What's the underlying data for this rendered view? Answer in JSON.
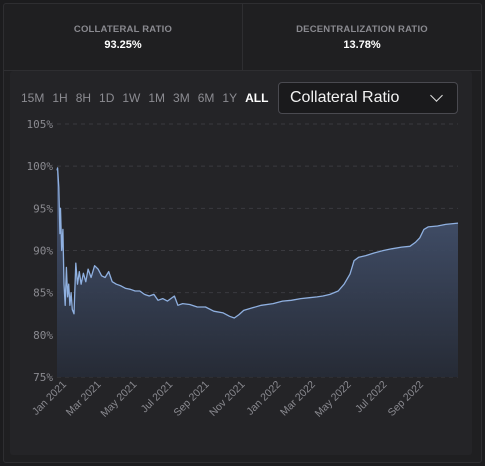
{
  "stats": [
    {
      "label": "COLLATERAL RATIO",
      "value": "93.25%"
    },
    {
      "label": "DECENTRALIZATION RATIO",
      "value": "13.78%"
    }
  ],
  "ranges": [
    "15M",
    "1H",
    "8H",
    "1D",
    "1W",
    "1M",
    "3M",
    "6M",
    "1Y",
    "ALL"
  ],
  "active_range": "ALL",
  "dropdown": {
    "label": "Collateral Ratio",
    "icon": "chevron-down-icon"
  },
  "colors": {
    "line": "#8fb0e0",
    "fill_top": "#4a5a7a",
    "fill_bottom": "#262b36",
    "grid": "#3a3a3f"
  },
  "chart_data": {
    "type": "area",
    "y_ticks": [
      "105%",
      "100%",
      "95%",
      "90%",
      "85%",
      "80%",
      "75%"
    ],
    "y_tick_values": [
      105,
      100,
      95,
      90,
      85,
      80,
      75
    ],
    "ylim": [
      75,
      105
    ],
    "x_ticks": [
      "Jan 2021",
      "Mar 2021",
      "May 2021",
      "Jul 2021",
      "Sep 2021",
      "Nov 2021",
      "Jan 2022",
      "Mar 2022",
      "May 2022",
      "Jul 2022",
      "Sep 2022"
    ],
    "x_tick_dates": [
      "2021-01-01",
      "2021-03-01",
      "2021-05-01",
      "2021-07-01",
      "2021-09-01",
      "2021-11-01",
      "2022-01-01",
      "2022-03-01",
      "2022-05-01",
      "2022-07-01",
      "2022-09-01"
    ],
    "xlim": [
      "2020-12-22",
      "2022-11-05"
    ],
    "grid": true,
    "series": [
      {
        "points": [
          [
            "2020-12-22",
            99.5
          ],
          [
            "2020-12-23",
            99.8
          ],
          [
            "2020-12-25",
            97.5
          ],
          [
            "2020-12-27",
            92
          ],
          [
            "2020-12-28",
            95
          ],
          [
            "2020-12-30",
            90
          ],
          [
            "2021-01-01",
            92.5
          ],
          [
            "2021-01-03",
            86
          ],
          [
            "2021-01-05",
            83.5
          ],
          [
            "2021-01-07",
            88
          ],
          [
            "2021-01-09",
            84.5
          ],
          [
            "2021-01-11",
            86
          ],
          [
            "2021-01-13",
            83.5
          ],
          [
            "2021-01-15",
            85
          ],
          [
            "2021-01-17",
            83
          ],
          [
            "2021-01-20",
            82.5
          ],
          [
            "2021-01-23",
            88.5
          ],
          [
            "2021-01-26",
            86
          ],
          [
            "2021-01-29",
            87.5
          ],
          [
            "2021-02-01",
            86
          ],
          [
            "2021-02-05",
            87.3
          ],
          [
            "2021-02-09",
            86.3
          ],
          [
            "2021-02-13",
            87.8
          ],
          [
            "2021-02-18",
            86.8
          ],
          [
            "2021-02-24",
            88.2
          ],
          [
            "2021-03-02",
            87.8
          ],
          [
            "2021-03-08",
            87
          ],
          [
            "2021-03-14",
            86.8
          ],
          [
            "2021-03-20",
            87.5
          ],
          [
            "2021-03-26",
            86.3
          ],
          [
            "2021-04-02",
            86
          ],
          [
            "2021-04-10",
            85.8
          ],
          [
            "2021-04-18",
            85.5
          ],
          [
            "2021-04-26",
            85.4
          ],
          [
            "2021-05-04",
            85.2
          ],
          [
            "2021-05-12",
            85.2
          ],
          [
            "2021-05-20",
            84.8
          ],
          [
            "2021-05-28",
            84.6
          ],
          [
            "2021-06-05",
            84.8
          ],
          [
            "2021-06-12",
            84.1
          ],
          [
            "2021-06-20",
            84.3
          ],
          [
            "2021-06-28",
            84
          ],
          [
            "2021-07-10",
            84.6
          ],
          [
            "2021-07-16",
            83.5
          ],
          [
            "2021-07-24",
            83.7
          ],
          [
            "2021-08-05",
            83.6
          ],
          [
            "2021-08-18",
            83.3
          ],
          [
            "2021-09-01",
            83.3
          ],
          [
            "2021-09-15",
            82.8
          ],
          [
            "2021-10-01",
            82.6
          ],
          [
            "2021-10-12",
            82.2
          ],
          [
            "2021-10-20",
            82
          ],
          [
            "2021-10-28",
            82.4
          ],
          [
            "2021-11-05",
            82.9
          ],
          [
            "2021-11-20",
            83.2
          ],
          [
            "2021-12-05",
            83.5
          ],
          [
            "2021-12-25",
            83.7
          ],
          [
            "2022-01-10",
            84
          ],
          [
            "2022-01-25",
            84.1
          ],
          [
            "2022-02-10",
            84.3
          ],
          [
            "2022-02-25",
            84.4
          ],
          [
            "2022-03-10",
            84.5
          ],
          [
            "2022-03-20",
            84.6
          ],
          [
            "2022-04-01",
            84.8
          ],
          [
            "2022-04-15",
            85.2
          ],
          [
            "2022-04-25",
            86
          ],
          [
            "2022-05-05",
            87.2
          ],
          [
            "2022-05-12",
            88.8
          ],
          [
            "2022-05-20",
            89.2
          ],
          [
            "2022-06-01",
            89.4
          ],
          [
            "2022-06-15",
            89.7
          ],
          [
            "2022-07-01",
            90
          ],
          [
            "2022-07-15",
            90.2
          ],
          [
            "2022-08-01",
            90.4
          ],
          [
            "2022-08-15",
            90.5
          ],
          [
            "2022-08-25",
            91
          ],
          [
            "2022-09-01",
            91.5
          ],
          [
            "2022-09-08",
            92.5
          ],
          [
            "2022-09-15",
            92.8
          ],
          [
            "2022-10-01",
            92.9
          ],
          [
            "2022-10-15",
            93.1
          ],
          [
            "2022-11-05",
            93.25
          ]
        ]
      }
    ]
  }
}
